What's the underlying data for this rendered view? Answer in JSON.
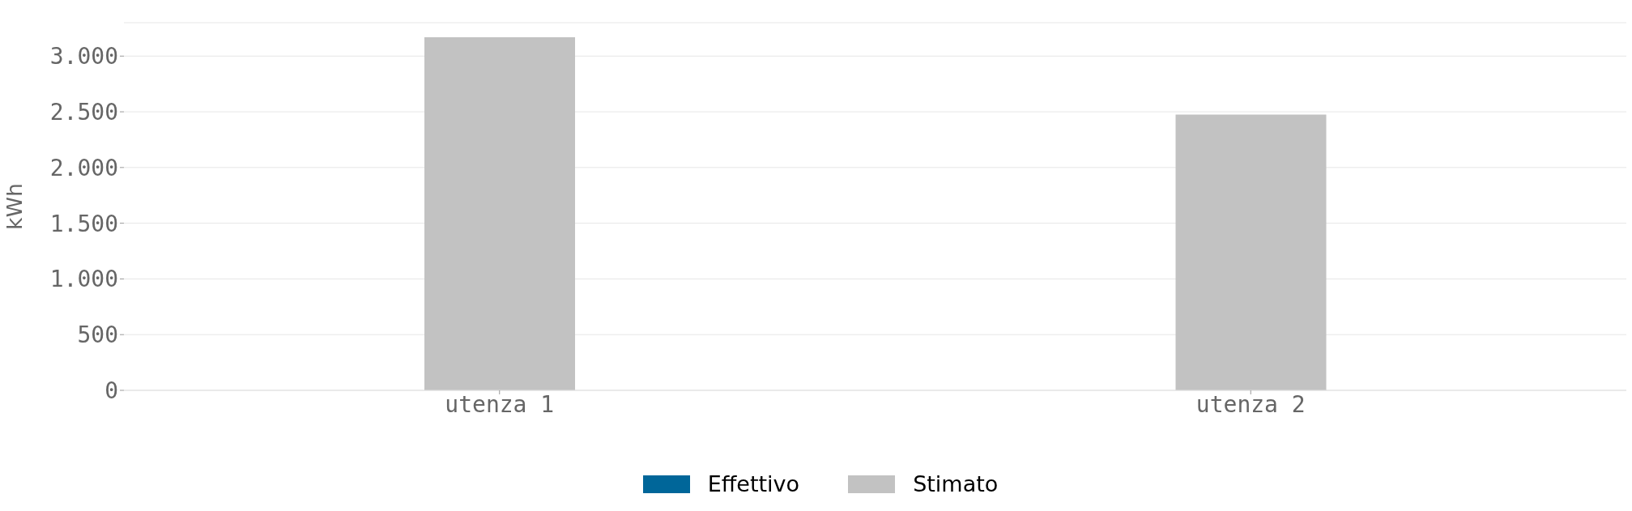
{
  "chart_data": {
    "type": "bar",
    "ylabel": "kWh",
    "categories": [
      "utenza 1",
      "utenza 2"
    ],
    "stacked": true,
    "series": [
      {
        "name": "Effettivo",
        "color": "#006699",
        "values": [
          null,
          null
        ]
      },
      {
        "name": "Stimato",
        "color": "#c2c2c2",
        "values": [
          3170,
          2475
        ]
      }
    ],
    "ylim": [
      0,
      3300
    ],
    "yticks": [
      {
        "value": 0,
        "label": "0"
      },
      {
        "value": 500,
        "label": "500"
      },
      {
        "value": 1000,
        "label": "1.000"
      },
      {
        "value": 1500,
        "label": "1.500"
      },
      {
        "value": 2000,
        "label": "2.000"
      },
      {
        "value": 2500,
        "label": "2.500"
      },
      {
        "value": 3000,
        "label": "3.000"
      }
    ],
    "grid": "y",
    "legend": "bottom"
  }
}
